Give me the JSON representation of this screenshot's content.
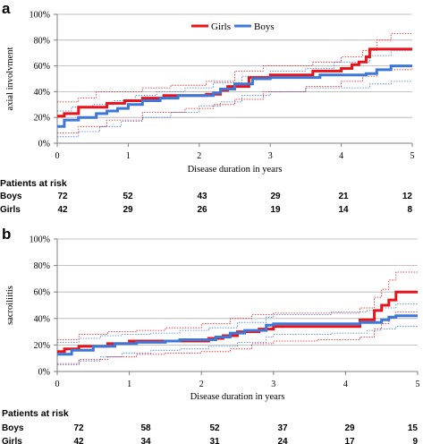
{
  "colors": {
    "girls": "#e8141b",
    "boys": "#3c78d8",
    "grid": "#b0b0b0",
    "axis": "#7f7f7f"
  },
  "chart_data": [
    {
      "panel": "a",
      "type": "line",
      "line_style": "step",
      "xlabel": "Disease duration in years",
      "ylabel": "axial involvment",
      "xlim": [
        0,
        5
      ],
      "ylim": [
        0,
        100
      ],
      "x_ticks": [
        "0",
        "1",
        "2",
        "3",
        "4",
        "5"
      ],
      "y_ticks": [
        "0%",
        "20%",
        "40%",
        "60%",
        "80%",
        "100%"
      ],
      "grid": true,
      "legend": {
        "position": "top-right",
        "entries": [
          "Girls",
          "Boys"
        ]
      },
      "series": [
        {
          "name": "Girls",
          "color": "#e8141b",
          "width": 3,
          "points": [
            [
              0,
              21
            ],
            [
              0.1,
              23
            ],
            [
              0.3,
              28
            ],
            [
              0.7,
              31
            ],
            [
              0.95,
              33
            ],
            [
              1.2,
              35
            ],
            [
              1.5,
              37
            ],
            [
              1.9,
              37
            ],
            [
              2.1,
              38
            ],
            [
              2.3,
              41
            ],
            [
              2.4,
              44
            ],
            [
              2.7,
              51
            ],
            [
              3.0,
              53
            ],
            [
              3.55,
              53
            ],
            [
              3.6,
              56
            ],
            [
              4.0,
              58
            ],
            [
              4.15,
              61
            ],
            [
              4.25,
              63
            ],
            [
              4.35,
              67
            ],
            [
              4.4,
              73
            ],
            [
              5.0,
              73
            ]
          ]
        },
        {
          "name": "Boys",
          "color": "#3c78d8",
          "width": 3,
          "points": [
            [
              0,
              13
            ],
            [
              0.1,
              18
            ],
            [
              0.3,
              20
            ],
            [
              0.55,
              23
            ],
            [
              0.7,
              25
            ],
            [
              0.85,
              27
            ],
            [
              1.0,
              30
            ],
            [
              1.2,
              33
            ],
            [
              1.45,
              35
            ],
            [
              1.7,
              37
            ],
            [
              2.2,
              39
            ],
            [
              2.3,
              42
            ],
            [
              2.5,
              46
            ],
            [
              2.75,
              50
            ],
            [
              3.0,
              51
            ],
            [
              3.7,
              53
            ],
            [
              4.35,
              54
            ],
            [
              4.5,
              57
            ],
            [
              4.7,
              60
            ],
            [
              5.0,
              60
            ]
          ]
        },
        {
          "name": "",
          "color": "#e8141b",
          "width": 0.8,
          "dashed": true,
          "points": [
            [
              0,
              32
            ],
            [
              0.3,
              35
            ],
            [
              0.55,
              40
            ],
            [
              1.2,
              43
            ],
            [
              1.6,
              45
            ],
            [
              2.1,
              48
            ],
            [
              2.5,
              56
            ],
            [
              2.9,
              60
            ],
            [
              3.6,
              63
            ],
            [
              4.0,
              67
            ],
            [
              4.3,
              72
            ],
            [
              4.5,
              80
            ],
            [
              4.7,
              85
            ],
            [
              5.0,
              85
            ]
          ]
        },
        {
          "name": "",
          "color": "#e8141b",
          "width": 0.8,
          "dashed": true,
          "points": [
            [
              0,
              8
            ],
            [
              0.3,
              13
            ],
            [
              0.7,
              18
            ],
            [
              1.2,
              24
            ],
            [
              1.8,
              27
            ],
            [
              2.2,
              30
            ],
            [
              2.5,
              34
            ],
            [
              2.9,
              40
            ],
            [
              3.5,
              44
            ],
            [
              4.0,
              48
            ],
            [
              4.3,
              52
            ],
            [
              4.5,
              57
            ],
            [
              5.0,
              58
            ]
          ]
        },
        {
          "name": "",
          "color": "#3c78d8",
          "width": 0.8,
          "dashed": true,
          "points": [
            [
              0,
              25
            ],
            [
              0.2,
              28
            ],
            [
              0.5,
              30
            ],
            [
              0.8,
              33
            ],
            [
              1.1,
              37
            ],
            [
              1.4,
              40
            ],
            [
              1.8,
              43
            ],
            [
              2.2,
              47
            ],
            [
              2.6,
              52
            ],
            [
              3.0,
              56
            ],
            [
              3.5,
              58
            ],
            [
              3.9,
              63
            ],
            [
              4.4,
              68
            ],
            [
              4.7,
              72
            ],
            [
              5.0,
              72
            ]
          ]
        },
        {
          "name": "",
          "color": "#3c78d8",
          "width": 0.8,
          "dashed": true,
          "points": [
            [
              0,
              5
            ],
            [
              0.3,
              9
            ],
            [
              0.6,
              13
            ],
            [
              0.9,
              17
            ],
            [
              1.2,
              20
            ],
            [
              1.6,
              24
            ],
            [
              2.0,
              29
            ],
            [
              2.3,
              32
            ],
            [
              2.6,
              37
            ],
            [
              3.0,
              40
            ],
            [
              3.5,
              43
            ],
            [
              4.0,
              43
            ],
            [
              4.4,
              46
            ],
            [
              4.7,
              48
            ],
            [
              5.0,
              48
            ]
          ]
        }
      ],
      "risk_table": {
        "title": "Patients at risk",
        "rows": [
          {
            "label": "Boys",
            "values": [
              "72",
              "52",
              "43",
              "29",
              "21",
              "12"
            ]
          },
          {
            "label": "Girls",
            "values": [
              "42",
              "29",
              "26",
              "19",
              "14",
              "8"
            ]
          }
        ]
      }
    },
    {
      "panel": "b",
      "type": "line",
      "line_style": "step",
      "xlabel": "Disease duration in years",
      "ylabel": "sacroiliitis",
      "xlim": [
        0,
        5
      ],
      "ylim": [
        0,
        100
      ],
      "x_ticks": [
        "0",
        "1",
        "2",
        "3",
        "4",
        "5"
      ],
      "y_ticks": [
        "0%",
        "20%",
        "40%",
        "60%",
        "80%",
        "100%"
      ],
      "grid": true,
      "series": [
        {
          "name": "Girls",
          "color": "#e8141b",
          "width": 3,
          "points": [
            [
              0,
              15
            ],
            [
              0.1,
              17
            ],
            [
              0.3,
              19
            ],
            [
              0.7,
              21
            ],
            [
              1.0,
              23
            ],
            [
              1.4,
              23
            ],
            [
              1.8,
              23
            ],
            [
              2.1,
              25
            ],
            [
              2.3,
              27
            ],
            [
              2.5,
              30
            ],
            [
              2.8,
              32
            ],
            [
              3.0,
              34
            ],
            [
              3.6,
              34
            ],
            [
              4.2,
              39
            ],
            [
              4.4,
              46
            ],
            [
              4.5,
              50
            ],
            [
              4.6,
              54
            ],
            [
              4.7,
              60
            ],
            [
              5.0,
              60
            ]
          ]
        },
        {
          "name": "Boys",
          "color": "#3c78d8",
          "width": 3,
          "points": [
            [
              0,
              13
            ],
            [
              0.2,
              16
            ],
            [
              0.5,
              19
            ],
            [
              0.8,
              21
            ],
            [
              1.1,
              22
            ],
            [
              1.5,
              23
            ],
            [
              1.7,
              24
            ],
            [
              2.2,
              26
            ],
            [
              2.4,
              29
            ],
            [
              2.6,
              31
            ],
            [
              2.9,
              35
            ],
            [
              3.0,
              36
            ],
            [
              4.0,
              36
            ],
            [
              4.2,
              37
            ],
            [
              4.5,
              39
            ],
            [
              4.6,
              41
            ],
            [
              4.7,
              42
            ],
            [
              5.0,
              42
            ]
          ]
        },
        {
          "name": "",
          "color": "#e8141b",
          "width": 0.8,
          "dashed": true,
          "points": [
            [
              0,
              24
            ],
            [
              0.3,
              28
            ],
            [
              0.7,
              30
            ],
            [
              1.1,
              31
            ],
            [
              1.5,
              33
            ],
            [
              2.0,
              36
            ],
            [
              2.4,
              40
            ],
            [
              2.7,
              43
            ],
            [
              3.0,
              44
            ],
            [
              3.6,
              44
            ],
            [
              4.2,
              48
            ],
            [
              4.4,
              56
            ],
            [
              4.5,
              62
            ],
            [
              4.6,
              69
            ],
            [
              4.7,
              75
            ],
            [
              5.0,
              75
            ]
          ]
        },
        {
          "name": "",
          "color": "#e8141b",
          "width": 0.8,
          "dashed": true,
          "points": [
            [
              0,
              6
            ],
            [
              0.3,
              9
            ],
            [
              0.7,
              11
            ],
            [
              1.1,
              13
            ],
            [
              1.5,
              14
            ],
            [
              2.0,
              15
            ],
            [
              2.4,
              17
            ],
            [
              2.7,
              21
            ],
            [
              3.0,
              23
            ],
            [
              3.6,
              24
            ],
            [
              4.2,
              26
            ],
            [
              4.4,
              32
            ],
            [
              4.5,
              36
            ],
            [
              4.6,
              40
            ],
            [
              4.7,
              45
            ],
            [
              5.0,
              45
            ]
          ]
        },
        {
          "name": "",
          "color": "#3c78d8",
          "width": 0.8,
          "dashed": true,
          "points": [
            [
              0,
              22
            ],
            [
              0.3,
              25
            ],
            [
              0.6,
              27
            ],
            [
              0.9,
              28
            ],
            [
              1.3,
              29
            ],
            [
              1.7,
              31
            ],
            [
              2.1,
              33
            ],
            [
              2.5,
              37
            ],
            [
              2.9,
              41
            ],
            [
              3.0,
              43
            ],
            [
              3.8,
              45
            ],
            [
              4.3,
              46
            ],
            [
              4.5,
              48
            ],
            [
              4.7,
              51
            ],
            [
              5.0,
              51
            ]
          ]
        },
        {
          "name": "",
          "color": "#3c78d8",
          "width": 0.8,
          "dashed": true,
          "points": [
            [
              0,
              5
            ],
            [
              0.3,
              8
            ],
            [
              0.6,
              11
            ],
            [
              0.9,
              14
            ],
            [
              1.3,
              16
            ],
            [
              1.7,
              17
            ],
            [
              2.1,
              19
            ],
            [
              2.5,
              22
            ],
            [
              2.9,
              26
            ],
            [
              3.0,
              28
            ],
            [
              3.8,
              29
            ],
            [
              4.3,
              31
            ],
            [
              4.5,
              32
            ],
            [
              4.7,
              34
            ],
            [
              5.0,
              34
            ]
          ]
        }
      ],
      "risk_table": {
        "title": "Patients at risk",
        "rows": [
          {
            "label": "Boys",
            "values": [
              "72",
              "58",
              "52",
              "37",
              "29",
              "15"
            ]
          },
          {
            "label": "Girls",
            "values": [
              "42",
              "34",
              "31",
              "24",
              "17",
              "9"
            ]
          }
        ]
      }
    }
  ]
}
